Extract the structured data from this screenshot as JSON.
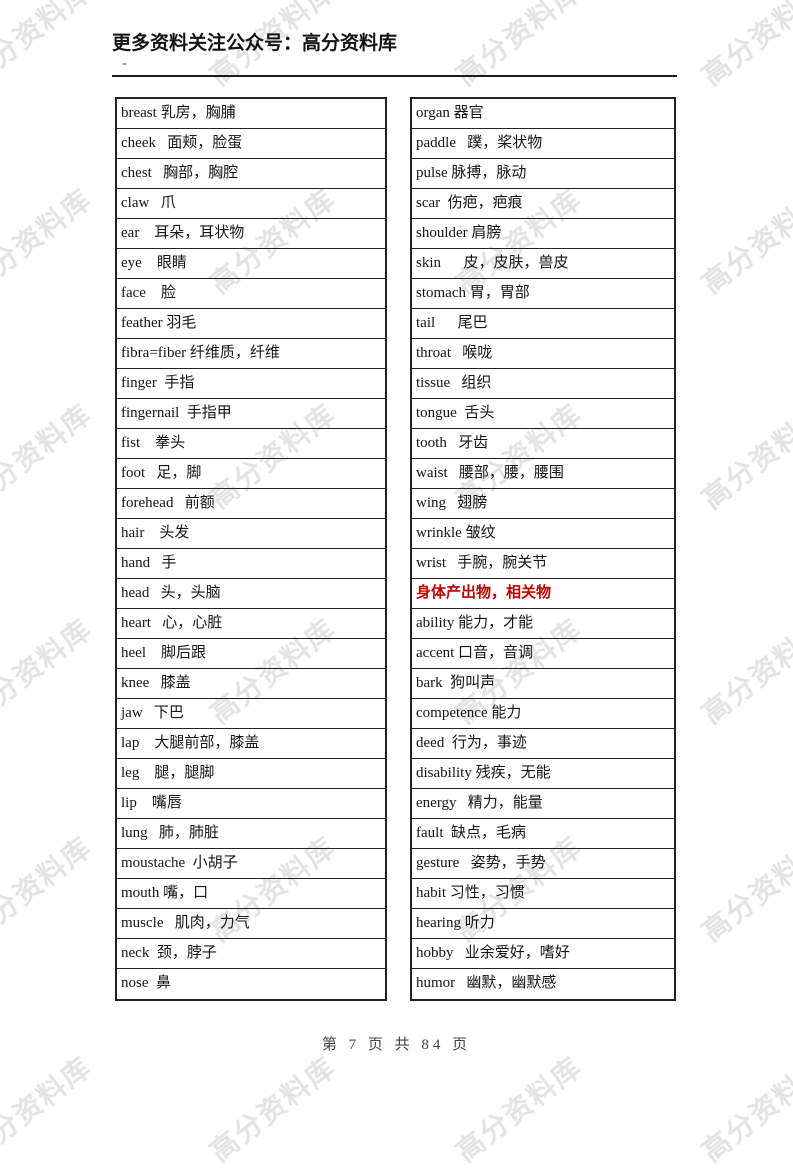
{
  "header": {
    "promo_text": "更多资料关注公众号：高分资料库",
    "dash": "-"
  },
  "watermark": {
    "text": "高分资料库",
    "color": "#e4e4e4"
  },
  "footer": {
    "page_info": "第 7 页 共 84 页",
    "page_number": "7",
    "total_pages": "84"
  },
  "colors": {
    "section_heading_red": "#c00000",
    "table_border": "#232323"
  },
  "vocab": {
    "left_column": [
      {
        "text": "breast 乳房，胸脯"
      },
      {
        "text": "cheek   面颊，脸蛋"
      },
      {
        "text": "chest   胸部，胸腔"
      },
      {
        "text": "claw   爪"
      },
      {
        "text": "ear    耳朵，耳状物"
      },
      {
        "text": "eye    眼睛"
      },
      {
        "text": "face    脸"
      },
      {
        "text": "feather 羽毛"
      },
      {
        "text": "fibra=fiber 纤维质，纤维"
      },
      {
        "text": "finger  手指"
      },
      {
        "text": "fingernail  手指甲"
      },
      {
        "text": "fist    拳头"
      },
      {
        "text": "foot   足，脚"
      },
      {
        "text": "forehead   前额"
      },
      {
        "text": "hair    头发"
      },
      {
        "text": "hand   手"
      },
      {
        "text": "head   头，头脑"
      },
      {
        "text": "heart   心，心脏"
      },
      {
        "text": "heel    脚后跟"
      },
      {
        "text": "knee   膝盖"
      },
      {
        "text": "jaw   下巴"
      },
      {
        "text": "lap    大腿前部，膝盖"
      },
      {
        "text": "leg    腿，腿脚"
      },
      {
        "text": "lip    嘴唇"
      },
      {
        "text": "lung   肺，肺脏"
      },
      {
        "text": "moustache  小胡子"
      },
      {
        "text": "mouth 嘴，口"
      },
      {
        "text": "muscle   肌肉，力气"
      },
      {
        "text": "neck  颈，脖子"
      },
      {
        "text": "nose  鼻"
      }
    ],
    "right_column": [
      {
        "text": "organ 器官"
      },
      {
        "text": "paddle   蹼，桨状物"
      },
      {
        "text": "pulse 脉搏，脉动"
      },
      {
        "text": "scar  伤疤，疤痕"
      },
      {
        "text": "shoulder 肩膀"
      },
      {
        "text": "skin      皮，皮肤，兽皮"
      },
      {
        "text": "stomach 胃，胃部"
      },
      {
        "text": "tail      尾巴"
      },
      {
        "text": "throat   喉咙"
      },
      {
        "text": "tissue   组织"
      },
      {
        "text": "tongue  舌头"
      },
      {
        "text": "tooth   牙齿"
      },
      {
        "text": "waist   腰部，腰，腰围"
      },
      {
        "text": "wing   翅膀"
      },
      {
        "text": "wrinkle 皱纹"
      },
      {
        "text": "wrist   手腕，腕关节"
      },
      {
        "text": "身体产出物，相关物",
        "red": true
      },
      {
        "text": "ability 能力，才能"
      },
      {
        "text": "accent 口音，音调"
      },
      {
        "text": "bark  狗叫声"
      },
      {
        "text": "competence 能力"
      },
      {
        "text": "deed  行为，事迹"
      },
      {
        "text": "disability 残疾，无能"
      },
      {
        "text": "energy   精力，能量"
      },
      {
        "text": "fault  缺点，毛病"
      },
      {
        "text": "gesture   姿势，手势"
      },
      {
        "text": "habit 习性，习惯"
      },
      {
        "text": "hearing 听力"
      },
      {
        "text": "hobby   业余爱好，嗜好"
      },
      {
        "text": "humor   幽默，幽默感"
      }
    ]
  }
}
